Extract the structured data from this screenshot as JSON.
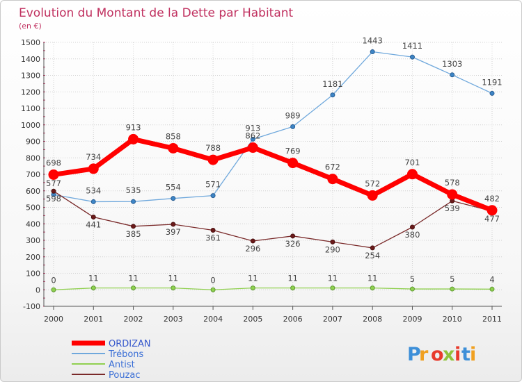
{
  "chart_data": {
    "type": "line",
    "title": "Evolution du Montant de la Dette par Habitant",
    "subtitle": "(en €)",
    "x": [
      "2000",
      "2001",
      "2002",
      "2003",
      "2004",
      "2005",
      "2006",
      "2007",
      "2008",
      "2009",
      "2010",
      "2011"
    ],
    "ylim": [
      -100,
      1500
    ],
    "yticks": [
      -100,
      0,
      100,
      200,
      300,
      400,
      500,
      600,
      700,
      800,
      900,
      1000,
      1100,
      1200,
      1300,
      1400,
      1500
    ],
    "grid": true,
    "legend_position": "bottom-left",
    "series": [
      {
        "name": "ORDIZAN",
        "color": "#ff0000",
        "values": [
          698,
          734,
          913,
          858,
          788,
          862,
          769,
          672,
          572,
          701,
          578,
          482
        ]
      },
      {
        "name": "Trébons",
        "color": "#6fa8dc",
        "values": [
          577,
          534,
          535,
          554,
          571,
          913,
          989,
          1181,
          1443,
          1411,
          1303,
          1191
        ]
      },
      {
        "name": "Antist",
        "color": "#90d050",
        "values": [
          0,
          11,
          11,
          11,
          0,
          11,
          11,
          11,
          11,
          5,
          5,
          4
        ]
      },
      {
        "name": "Pouzac",
        "color": "#7a2a2a",
        "values": [
          598,
          441,
          385,
          397,
          361,
          296,
          326,
          290,
          254,
          380,
          539,
          477
        ]
      }
    ]
  },
  "logo": {
    "letters": [
      "P",
      "r",
      "o",
      "x",
      "i",
      "t",
      "i"
    ],
    "colors": [
      "#3d8fd8",
      "#f0a020",
      "#e83a2c",
      "#8fc23a",
      "#e83a2c",
      "#3d8fd8",
      "#f0a020"
    ]
  }
}
